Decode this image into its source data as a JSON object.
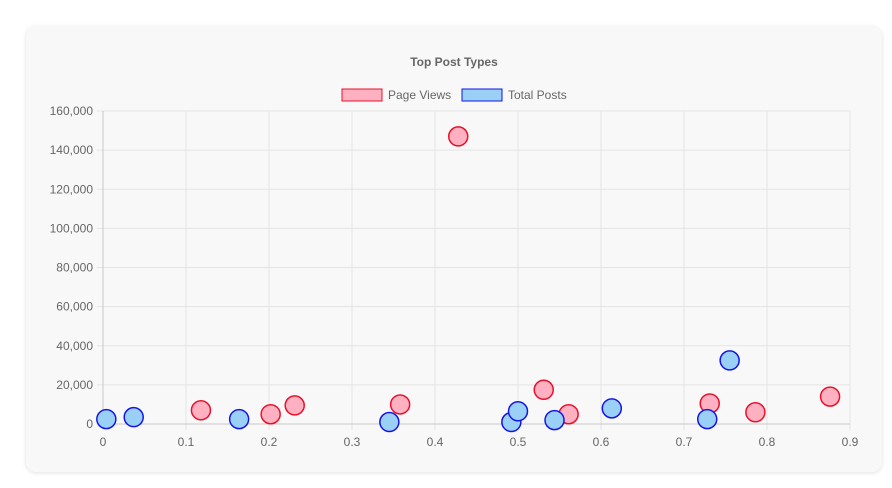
{
  "chart_data": {
    "type": "scatter",
    "title": "Top Post Types",
    "xlabel": "",
    "ylabel": "",
    "xlim": [
      0,
      0.9
    ],
    "ylim": [
      0,
      160000
    ],
    "x_ticks": [
      "0",
      "0.1",
      "0.2",
      "0.3",
      "0.4",
      "0.5",
      "0.6",
      "0.7",
      "0.8",
      "0.9"
    ],
    "y_ticks": [
      "0",
      "20,000",
      "40,000",
      "60,000",
      "80,000",
      "100,000",
      "120,000",
      "140,000",
      "160,000"
    ],
    "grid": true,
    "legend_position": "top",
    "series": [
      {
        "name": "Page Views",
        "fill": "#ffb1c1",
        "stroke": "#e8102b",
        "points": [
          {
            "x": 0.118,
            "y": 7000
          },
          {
            "x": 0.202,
            "y": 5000
          },
          {
            "x": 0.231,
            "y": 9500
          },
          {
            "x": 0.358,
            "y": 10000
          },
          {
            "x": 0.428,
            "y": 147000
          },
          {
            "x": 0.531,
            "y": 17500
          },
          {
            "x": 0.561,
            "y": 5000
          },
          {
            "x": 0.731,
            "y": 10500
          },
          {
            "x": 0.786,
            "y": 6000
          },
          {
            "x": 0.876,
            "y": 14000
          }
        ]
      },
      {
        "name": "Total Posts",
        "fill": "#9ad0f5",
        "stroke": "#1414e6",
        "points": [
          {
            "x": 0.004,
            "y": 2500
          },
          {
            "x": 0.037,
            "y": 3500
          },
          {
            "x": 0.164,
            "y": 2500
          },
          {
            "x": 0.345,
            "y": 1000
          },
          {
            "x": 0.492,
            "y": 1000
          },
          {
            "x": 0.5,
            "y": 6500
          },
          {
            "x": 0.544,
            "y": 2000
          },
          {
            "x": 0.613,
            "y": 8000
          },
          {
            "x": 0.728,
            "y": 2500
          },
          {
            "x": 0.755,
            "y": 32500
          }
        ]
      }
    ]
  }
}
